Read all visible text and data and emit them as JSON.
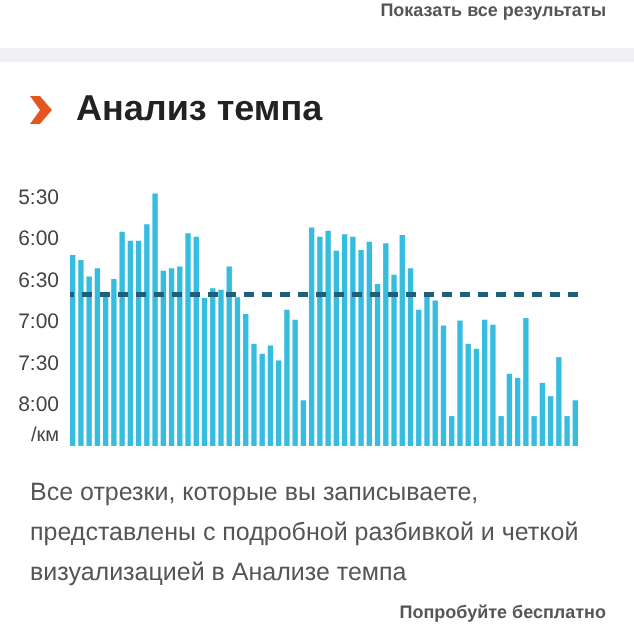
{
  "chart_data": {
    "type": "bar",
    "title": "Анализ темпа",
    "ylabel": "/км",
    "annotations": [
      "Показать все результаты",
      "Все отрезки, которые вы записываете, представлены с подробной разбивкой и четкой визуализацией в Анализе темпа",
      "Попробуйте бесплатно"
    ],
    "categories": [
      null,
      null,
      null,
      null,
      null,
      null,
      null,
      null,
      null,
      null,
      null,
      null,
      null,
      null,
      null,
      null,
      null,
      null,
      null,
      null,
      null,
      null,
      null,
      null,
      null,
      null,
      null,
      null,
      null,
      null,
      null,
      null,
      null,
      null,
      null,
      null,
      null,
      null,
      null,
      null,
      null,
      null,
      null,
      null,
      null,
      null,
      null,
      null,
      null,
      null,
      null,
      null,
      null,
      null,
      null,
      null,
      null,
      null,
      null,
      null,
      null,
      null
    ],
    "values": [
      -2.3,
      -2.24,
      -2.04,
      -2.14,
      -1.8,
      -2.01,
      -2.58,
      -2.47,
      -2.47,
      -2.67,
      -3.04,
      -2.11,
      -2.14,
      -2.16,
      -2.56,
      -2.52,
      -1.78,
      -1.9,
      -1.88,
      -2.16,
      -1.79,
      -1.59,
      -1.23,
      -1.11,
      -1.21,
      -1.03,
      -1.64,
      -1.52,
      -0.55,
      -2.63,
      -2.52,
      -2.59,
      -2.35,
      -2.55,
      -2.52,
      -2.36,
      -2.46,
      -1.95,
      -2.44,
      -2.06,
      -2.54,
      -2.14,
      -1.64,
      -1.8,
      -1.75,
      -1.45,
      -0.36,
      -1.51,
      -1.23,
      -1.17,
      -1.52,
      -1.46,
      -0.36,
      -0.87,
      -0.82,
      -1.54,
      -0.36,
      -0.76,
      -0.6,
      -1.07,
      -0.36,
      -0.55
    ],
    "base": [
      8.5,
      8.5,
      8.5,
      8.5,
      8.5,
      8.5,
      8.5,
      8.5,
      8.5,
      8.5,
      8.5,
      8.5,
      8.5,
      8.5,
      8.5,
      8.5,
      8.5,
      8.5,
      8.5,
      8.5,
      8.5,
      8.5,
      8.5,
      8.5,
      8.5,
      8.5,
      8.5,
      8.5,
      8.5,
      8.5,
      8.5,
      8.5,
      8.5,
      8.5,
      8.5,
      8.5,
      8.5,
      8.5,
      8.5,
      8.5,
      8.5,
      8.5,
      8.5,
      8.5,
      8.5,
      8.5,
      8.5,
      8.5,
      8.5,
      8.5,
      8.5,
      8.5,
      8.5,
      8.5,
      8.5,
      8.5,
      8.5,
      8.5,
      8.5,
      8.5,
      8.5,
      8.5
    ],
    "color": "#35bcdf",
    "ylim": [
      8.5,
      5.25
    ],
    "yticks": [
      {
        "value": 5.5,
        "label": "5:30"
      },
      {
        "value": 6,
        "label": "6:00"
      },
      {
        "value": 6.5,
        "label": "6:30"
      },
      {
        "value": 7,
        "label": "7:00"
      },
      {
        "value": 7.5,
        "label": "7:30"
      },
      {
        "value": 8,
        "label": "8:00"
      }
    ],
    "ref_lines": [
      {
        "axis": "y",
        "value": 6.68,
        "color": "#1f5f78",
        "line_style": "dashed"
      }
    ],
    "grid": false
  }
}
